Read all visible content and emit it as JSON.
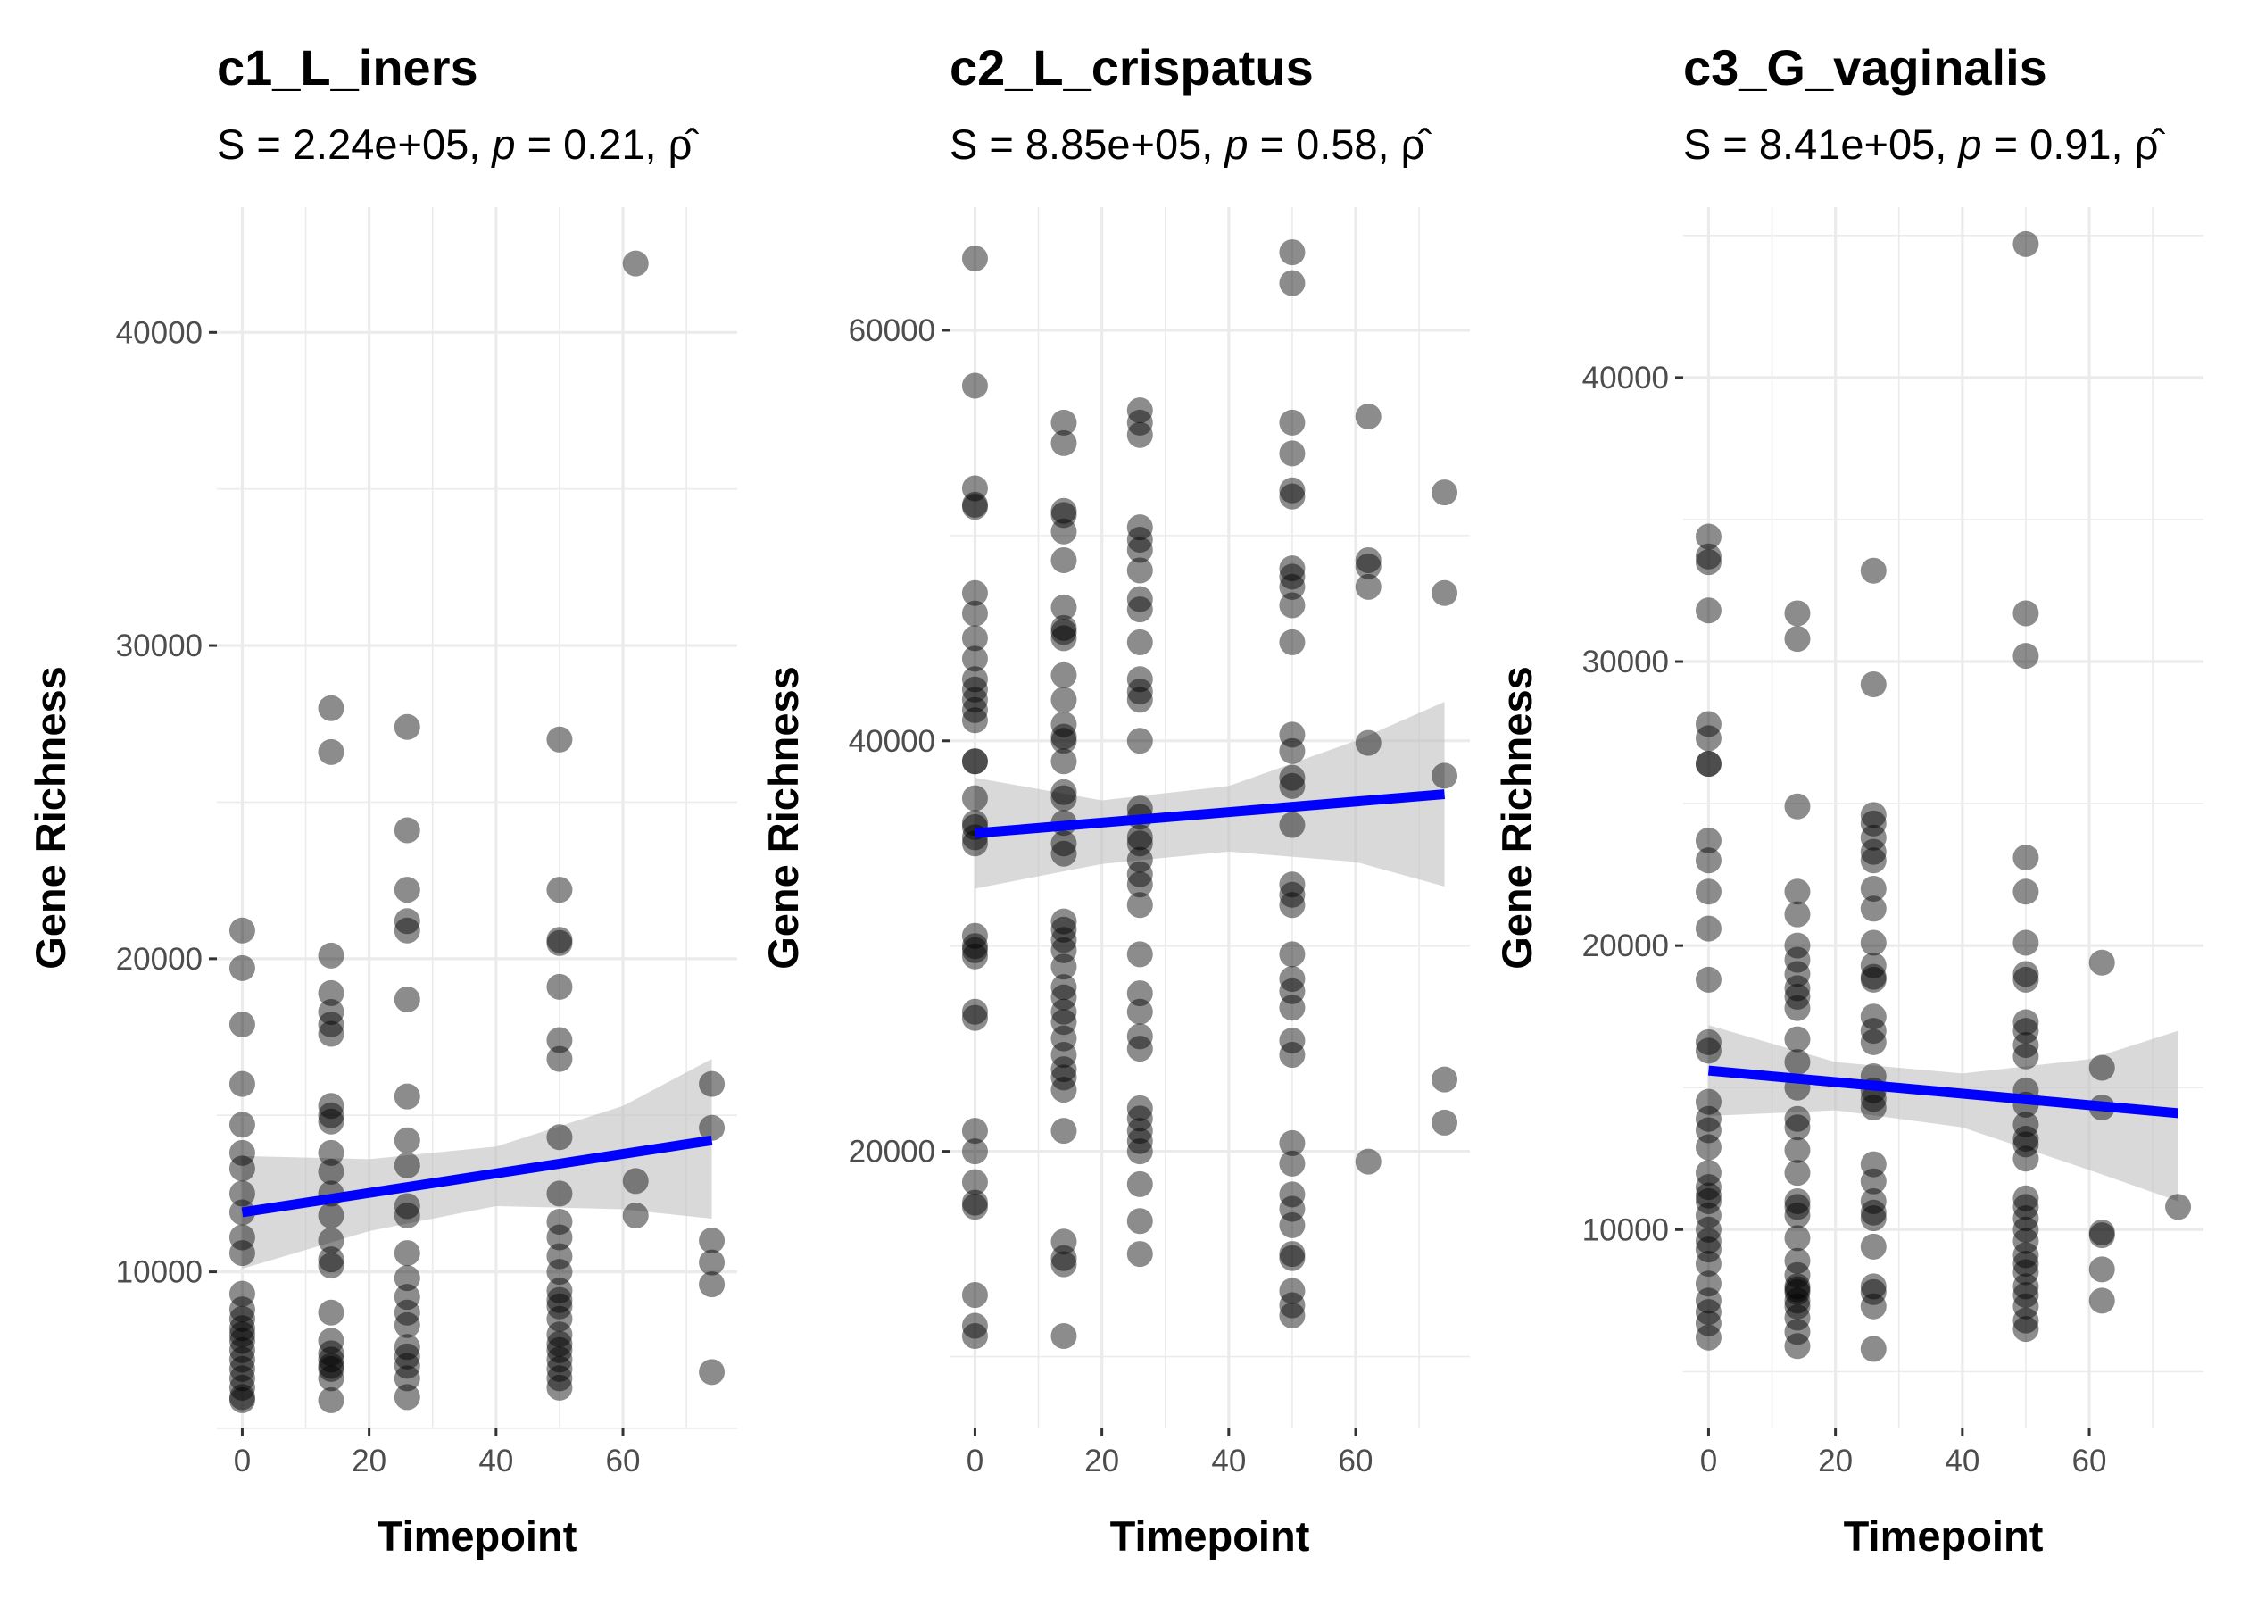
{
  "chart_data": [
    {
      "type": "scatter",
      "title": "c1_L_iners",
      "subtitle": {
        "prefix": "S = 2.24e+05, ",
        "p_label": "p",
        "rest": " = 0.21, ",
        "rho_symbol": "ρ̂"
      },
      "xlabel": "Timepoint",
      "ylabel": "Gene Richness",
      "xlim": [
        -4,
        78
      ],
      "ylim": [
        5000,
        44000
      ],
      "xticks": [
        0,
        20,
        40,
        60
      ],
      "yticks": [
        10000,
        20000,
        30000,
        40000
      ],
      "ytick_labels": [
        "10000",
        "20000",
        "30000",
        "40000"
      ],
      "grid": true,
      "point_color": "#4d4d4d",
      "fit_color": "#0000ff",
      "band_color": "#bfbfbf",
      "fit": {
        "x": [
          0,
          74
        ],
        "y": [
          11900,
          14200
        ]
      },
      "band": {
        "x": [
          0,
          20,
          40,
          60,
          74
        ],
        "upper": [
          13700,
          13600,
          14000,
          15300,
          16800
        ],
        "lower": [
          10100,
          11300,
          12100,
          12000,
          11700
        ]
      },
      "series": [
        {
          "x": [
            0,
            0,
            0,
            0,
            0,
            0,
            0,
            0,
            0,
            0,
            0,
            0,
            0,
            0,
            0,
            0,
            0,
            0,
            0,
            0,
            0,
            0,
            0,
            0
          ],
          "y": [
            20900,
            19700,
            17900,
            16000,
            14700,
            13800,
            13300,
            12500,
            11900,
            11100,
            10600,
            9300,
            8800,
            8500,
            8200,
            8000,
            7800,
            7500,
            7200,
            6900,
            6600,
            6300,
            6000,
            5900
          ]
        },
        {
          "x": [
            14,
            14,
            14,
            14,
            14,
            14,
            14,
            14,
            14,
            14,
            14,
            14,
            14,
            14,
            14,
            14,
            14,
            14,
            14,
            14,
            14,
            14,
            14,
            14,
            14
          ],
          "y": [
            28000,
            26600,
            20100,
            18900,
            18300,
            17900,
            17600,
            15300,
            15000,
            14800,
            13800,
            13200,
            12500,
            11800,
            11000,
            10400,
            10200,
            8700,
            7800,
            7400,
            7200,
            7000,
            6900,
            6600,
            5900
          ]
        },
        {
          "x": [
            26,
            26,
            26,
            26,
            26,
            26,
            26,
            26,
            26,
            26,
            26,
            26,
            26,
            26,
            26,
            26,
            26,
            26,
            26,
            26,
            26
          ],
          "y": [
            27400,
            24100,
            22200,
            21200,
            20900,
            18700,
            15600,
            14200,
            13400,
            12100,
            11800,
            10600,
            9800,
            9200,
            8700,
            8300,
            7600,
            7300,
            7000,
            6600,
            6000
          ]
        },
        {
          "x": [
            50,
            50,
            50,
            50,
            50,
            50,
            50,
            50,
            50,
            50,
            50,
            50,
            50,
            50,
            50,
            50,
            50,
            50,
            50,
            50,
            50,
            50,
            50,
            50
          ],
          "y": [
            27000,
            22200,
            20600,
            20500,
            19100,
            17400,
            16800,
            14300,
            12500,
            11600,
            11100,
            10500,
            10000,
            9400,
            9100,
            8900,
            8500,
            8000,
            7700,
            7500,
            7200,
            6900,
            6600,
            6300
          ]
        },
        {
          "x": [
            62,
            62,
            62
          ],
          "y": [
            42200,
            12900,
            11800
          ]
        },
        {
          "x": [
            74,
            74,
            74,
            74,
            74,
            74
          ],
          "y": [
            16000,
            14600,
            11000,
            10300,
            9600,
            6800
          ]
        }
      ]
    },
    {
      "type": "scatter",
      "title": "c2_L_crispatus",
      "subtitle": {
        "prefix": "S = 8.85e+05, ",
        "p_label": "p",
        "rest": " = 0.58, ",
        "rho_symbol": "ρ̂"
      },
      "xlabel": "Timepoint",
      "ylabel": "Gene Richness",
      "xlim": [
        -4,
        78
      ],
      "ylim": [
        6500,
        66000
      ],
      "xticks": [
        0,
        20,
        40,
        60
      ],
      "yticks": [
        20000,
        40000,
        60000
      ],
      "ytick_labels": [
        "20000",
        "40000",
        "60000"
      ],
      "grid": true,
      "point_color": "#4d4d4d",
      "fit_color": "#0000ff",
      "band_color": "#bfbfbf",
      "fit": {
        "x": [
          0,
          74
        ],
        "y": [
          35500,
          37400
        ]
      },
      "band": {
        "x": [
          0,
          20,
          40,
          60,
          74
        ],
        "upper": [
          38200,
          37100,
          37800,
          40000,
          41900
        ],
        "lower": [
          32800,
          34000,
          34600,
          34100,
          32900
        ]
      },
      "series": [
        {
          "x": [
            0,
            0,
            0,
            0,
            0,
            0,
            0,
            0,
            0,
            0,
            0,
            0,
            0,
            0,
            0,
            0,
            0,
            0,
            0,
            0,
            0,
            0,
            0,
            0,
            0,
            0,
            0,
            0,
            0,
            0,
            0,
            0,
            0,
            0,
            0
          ],
          "y": [
            63500,
            57300,
            52300,
            51500,
            51400,
            47200,
            46200,
            45000,
            44000,
            43000,
            42500,
            42000,
            41500,
            41000,
            39000,
            39000,
            37200,
            36000,
            35800,
            35300,
            35000,
            30500,
            30000,
            29800,
            29500,
            26800,
            26500,
            21000,
            20000,
            18500,
            17500,
            17300,
            13000,
            11500,
            11000
          ]
        },
        {
          "x": [
            14,
            14,
            14,
            14,
            14,
            14,
            14,
            14,
            14,
            14,
            14,
            14,
            14,
            14,
            14,
            14,
            14,
            14,
            14,
            14,
            14,
            14,
            14,
            14,
            14,
            14,
            14,
            14,
            14,
            14,
            14,
            14,
            14,
            14,
            14,
            14,
            14,
            14,
            14,
            14
          ],
          "y": [
            55500,
            54500,
            51200,
            51000,
            50200,
            48800,
            46500,
            45500,
            45300,
            45000,
            43200,
            42000,
            40800,
            40200,
            40000,
            39000,
            37500,
            37200,
            36000,
            35000,
            34500,
            31200,
            30800,
            30300,
            29800,
            29000,
            28000,
            27500,
            26800,
            26300,
            25500,
            24700,
            24000,
            23600,
            23000,
            21000,
            15600,
            14800,
            14500,
            11000
          ]
        },
        {
          "x": [
            26,
            26,
            26,
            26,
            26,
            26,
            26,
            26,
            26,
            26,
            26,
            26,
            26,
            26,
            26,
            26,
            26,
            26,
            26,
            26,
            26,
            26,
            26,
            26,
            26,
            26,
            26,
            26,
            26,
            26,
            26,
            26,
            26,
            26,
            26
          ],
          "y": [
            56100,
            55500,
            54900,
            50400,
            49800,
            49300,
            48300,
            46900,
            46400,
            44800,
            43000,
            42400,
            42000,
            40000,
            36700,
            36300,
            35300,
            35000,
            34200,
            33500,
            33000,
            32000,
            29600,
            27700,
            26800,
            25600,
            25000,
            22100,
            21600,
            21000,
            20500,
            20000,
            18400,
            16600,
            15000
          ]
        },
        {
          "x": [
            50,
            50,
            50,
            50,
            50,
            50,
            50,
            50,
            50,
            50,
            50,
            50,
            50,
            50,
            50,
            50,
            50,
            50,
            50,
            50,
            50,
            50,
            50,
            50,
            50,
            50,
            50,
            50,
            50,
            50,
            50,
            50,
            50,
            50,
            50
          ],
          "y": [
            63800,
            62300,
            55500,
            54000,
            52200,
            51900,
            48400,
            48000,
            47500,
            46600,
            44800,
            40300,
            39500,
            38200,
            37800,
            35900,
            33000,
            32500,
            32000,
            29600,
            28400,
            27800,
            27000,
            25400,
            24700,
            20400,
            19400,
            17900,
            17200,
            16400,
            15000,
            14800,
            13200,
            12500,
            12000
          ]
        },
        {
          "x": [
            62,
            62,
            62,
            62,
            62,
            62
          ],
          "y": [
            55800,
            48800,
            48500,
            47500,
            39900,
            19500
          ]
        },
        {
          "x": [
            74,
            74,
            74,
            74,
            74
          ],
          "y": [
            52100,
            47200,
            38300,
            23500,
            21400
          ]
        }
      ]
    },
    {
      "type": "scatter",
      "title": "c3_G_vaginalis",
      "subtitle": {
        "prefix": "S = 8.41e+05, ",
        "p_label": "p",
        "rest": " = 0.91, ",
        "rho_symbol": "ρ̂"
      },
      "xlabel": "Timepoint",
      "ylabel": "Gene Richness",
      "xlim": [
        -4,
        78
      ],
      "ylim": [
        3000,
        46000
      ],
      "xticks": [
        0,
        20,
        40,
        60
      ],
      "yticks": [
        10000,
        20000,
        30000,
        40000
      ],
      "ytick_labels": [
        "10000",
        "20000",
        "30000",
        "40000"
      ],
      "grid": true,
      "point_color": "#4d4d4d",
      "fit_color": "#0000ff",
      "band_color": "#bfbfbf",
      "fit": {
        "x": [
          0,
          74
        ],
        "y": [
          15600,
          14100
        ]
      },
      "band": {
        "x": [
          0,
          20,
          40,
          60,
          74
        ],
        "upper": [
          17200,
          15900,
          15500,
          16000,
          17000
        ],
        "lower": [
          14000,
          14200,
          13600,
          12100,
          11000
        ]
      },
      "series": [
        {
          "x": [
            0,
            0,
            0,
            0,
            0,
            0,
            0,
            0,
            0,
            0,
            0,
            0,
            0,
            0,
            0,
            0,
            0,
            0,
            0,
            0,
            0,
            0,
            0,
            0,
            0,
            0,
            0,
            0,
            0,
            0,
            0,
            0,
            0
          ],
          "y": [
            34400,
            33700,
            33500,
            31800,
            27800,
            27300,
            26400,
            26400,
            23700,
            23000,
            21900,
            20600,
            18800,
            16600,
            16300,
            14500,
            13900,
            13500,
            12900,
            12000,
            11500,
            11200,
            11000,
            10500,
            10000,
            9600,
            9300,
            8800,
            8100,
            7500,
            7100,
            6700,
            6200
          ]
        },
        {
          "x": [
            14,
            14,
            14,
            14,
            14,
            14,
            14,
            14,
            14,
            14,
            14,
            14,
            14,
            14,
            14,
            14,
            14,
            14,
            14,
            14,
            14,
            14,
            14,
            14,
            14,
            14,
            14,
            14,
            14,
            14,
            14,
            14
          ],
          "y": [
            31700,
            30800,
            24900,
            21900,
            21100,
            20000,
            19500,
            19000,
            18500,
            18200,
            17800,
            16700,
            15900,
            15000,
            13900,
            13600,
            12800,
            12000,
            11000,
            10800,
            10500,
            9700,
            8900,
            8400,
            8000,
            7900,
            7800,
            7500,
            7300,
            6900,
            6400,
            5900
          ]
        },
        {
          "x": [
            26,
            26,
            26,
            26,
            26,
            26,
            26,
            26,
            26,
            26,
            26,
            26,
            26,
            26,
            26,
            26,
            26,
            26,
            26,
            26,
            26,
            26,
            26,
            26,
            26,
            26,
            26,
            26,
            26,
            26
          ],
          "y": [
            33200,
            29200,
            24600,
            24300,
            23800,
            23300,
            23000,
            22000,
            21300,
            20100,
            19300,
            18900,
            18800,
            17500,
            17000,
            16600,
            15400,
            14900,
            14600,
            14300,
            12300,
            11700,
            11000,
            10600,
            10400,
            9400,
            8000,
            7800,
            7300,
            5800
          ]
        },
        {
          "x": [
            50,
            50,
            50,
            50,
            50,
            50,
            50,
            50,
            50,
            50,
            50,
            50,
            50,
            50,
            50,
            50,
            50,
            50,
            50,
            50,
            50,
            50,
            50,
            50,
            50,
            50,
            50,
            50,
            50,
            50,
            50
          ],
          "y": [
            44700,
            31700,
            30200,
            23100,
            21900,
            20100,
            19000,
            18800,
            17300,
            17000,
            16500,
            16100,
            14900,
            14400,
            13700,
            13200,
            13000,
            12500,
            11100,
            10800,
            10400,
            10000,
            9600,
            9100,
            8800,
            8500,
            8000,
            7700,
            7300,
            6800,
            6500
          ]
        },
        {
          "x": [
            62,
            62,
            62,
            62,
            62,
            62,
            62
          ],
          "y": [
            19400,
            15700,
            14300,
            9900,
            9800,
            8600,
            7500
          ]
        },
        {
          "x": [
            74
          ],
          "y": [
            10800
          ]
        }
      ]
    }
  ]
}
